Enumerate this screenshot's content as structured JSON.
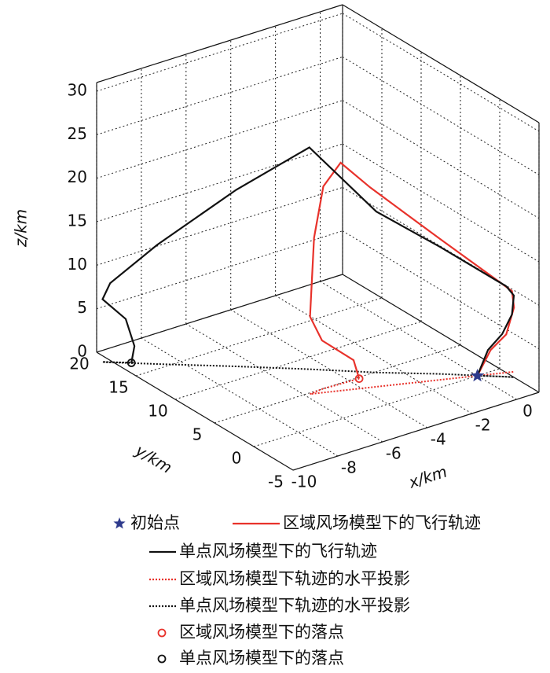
{
  "chart_data": {
    "type": "line3d",
    "xlabel": "x/km",
    "ylabel": "y/km",
    "zlabel": "z/km",
    "xlim": [
      -10,
      1
    ],
    "ylim": [
      -5,
      20
    ],
    "zlim": [
      0,
      31
    ],
    "xticks": [
      -10,
      -8,
      -6,
      -4,
      -2,
      0
    ],
    "yticks": [
      -5,
      0,
      5,
      10,
      15,
      20
    ],
    "zticks": [
      0,
      5,
      10,
      15,
      20,
      25,
      30
    ],
    "grid": true,
    "series": [
      {
        "name": "初始点",
        "kind": "point",
        "marker": "star",
        "color": "#2e3a8c",
        "x": [
          0
        ],
        "y": [
          0
        ],
        "z": [
          0
        ]
      },
      {
        "name": "区域风场模型下的飞行轨迹",
        "kind": "line",
        "dash": "solid",
        "color": "#e8322b",
        "x": [
          0,
          0.46,
          1.0,
          1.27,
          1.2,
          -1.29,
          -3.71,
          -4.73,
          -5.33,
          -5.65,
          -5.79,
          -5.2,
          -3.84,
          -3.6
        ],
        "y": [
          0,
          -0.38,
          -0.83,
          -1.05,
          -0.99,
          1.08,
          3.1,
          3.95,
          4.44,
          4.71,
          4.82,
          4.98,
          4.83,
          4.8
        ],
        "z": [
          0,
          2.8,
          4.4,
          7.4,
          9.3,
          16.2,
          23.0,
          26.2,
          23.7,
          17.9,
          8.9,
          5.6,
          2.3,
          0
        ]
      },
      {
        "name": "单点风场模型下的飞行轨迹",
        "kind": "line",
        "dash": "solid",
        "color": "#111111",
        "x": [
          0,
          0.3,
          0.69,
          0.95,
          1.0,
          0.8,
          -1.0,
          -2.8,
          -4.6,
          -6.6,
          -8.8,
          -10.1,
          -10.3,
          -9.65,
          -9.4,
          -9.5
        ],
        "y": [
          0,
          -0.5,
          -1.2,
          -1.7,
          -1.8,
          -1.4,
          1.9,
          4.9,
          8.3,
          11.9,
          15.7,
          18.0,
          18.4,
          17.3,
          16.9,
          17
        ],
        "z": [
          0,
          3.0,
          4.9,
          7.2,
          9.4,
          10.4,
          14.6,
          18.5,
          25.5,
          20.3,
          13.7,
          9.1,
          7.2,
          5.0,
          1.9,
          0
        ]
      },
      {
        "name": "区域风场模型下轨迹的水平投影",
        "kind": "projection",
        "dash": "dotted",
        "color": "#e8322b",
        "x": [
          0,
          0.46,
          1.0,
          1.27,
          1.2,
          -1.29,
          -3.71,
          -4.73,
          -5.33,
          -5.65,
          -5.79,
          -5.2,
          -3.84,
          -3.6
        ],
        "y": [
          0,
          -0.38,
          -0.83,
          -1.05,
          -0.99,
          1.08,
          3.1,
          3.95,
          4.44,
          4.71,
          4.82,
          4.98,
          4.83,
          4.8
        ]
      },
      {
        "name": "单点风场模型下轨迹的水平投影",
        "kind": "projection",
        "dash": "dotted",
        "color": "#111111",
        "x": [
          0,
          0.3,
          0.69,
          0.95,
          1.0,
          0.8,
          -1.0,
          -2.8,
          -4.6,
          -6.6,
          -8.8,
          -10.1,
          -10.3,
          -9.65,
          -9.4,
          -9.5
        ],
        "y": [
          0,
          -0.5,
          -1.2,
          -1.7,
          -1.8,
          -1.4,
          1.9,
          4.9,
          8.3,
          11.9,
          15.7,
          18.0,
          18.4,
          17.3,
          16.9,
          17
        ]
      },
      {
        "name": "区域风场模型下的落点",
        "kind": "point",
        "marker": "circle",
        "color": "#e8322b",
        "x": [
          -3.6
        ],
        "y": [
          4.8
        ],
        "z": [
          0
        ]
      },
      {
        "name": "单点风场模型下的落点",
        "kind": "point",
        "marker": "circle",
        "color": "#111111",
        "x": [
          -9.5
        ],
        "y": [
          17
        ],
        "z": [
          0
        ]
      }
    ]
  }
}
